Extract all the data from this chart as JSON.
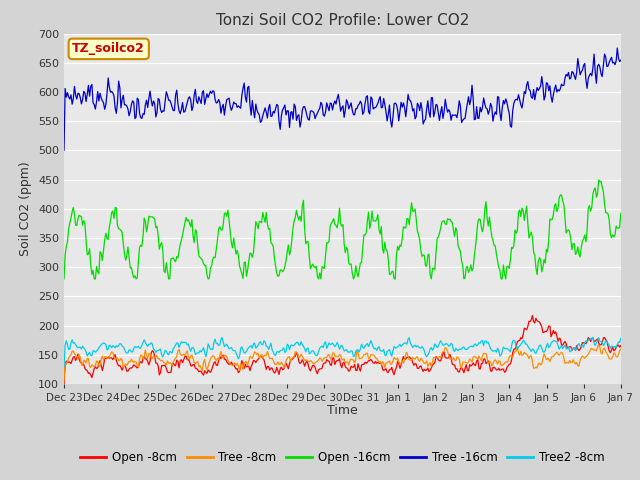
{
  "title": "Tonzi Soil CO2 Profile: Lower CO2",
  "ylabel": "Soil CO2 (ppm)",
  "xlabel": "Time",
  "watermark": "TZ_soilco2",
  "ylim": [
    100,
    700
  ],
  "yticks": [
    100,
    150,
    200,
    250,
    300,
    350,
    400,
    450,
    500,
    550,
    600,
    650,
    700
  ],
  "x_labels": [
    "Dec 23",
    "Dec 24",
    "Dec 25",
    "Dec 26",
    "Dec 27",
    "Dec 28",
    "Dec 29",
    "Dec 30",
    "Dec 31",
    "Jan 1",
    "Jan 2",
    "Jan 3",
    "Jan 4",
    "Jan 5",
    "Jan 6",
    "Jan 7"
  ],
  "series": {
    "open_8cm": {
      "label": "Open -8cm",
      "color": "#ff0000"
    },
    "tree_8cm": {
      "label": "Tree -8cm",
      "color": "#ff8c00"
    },
    "open_16cm": {
      "label": "Open -16cm",
      "color": "#00dd00"
    },
    "tree_16cm": {
      "label": "Tree -16cm",
      "color": "#0000cc"
    },
    "tree2_8cm": {
      "label": "Tree2 -8cm",
      "color": "#00ccee"
    }
  },
  "background_color": "#d4d4d4",
  "plot_bg": "#e8e8e8",
  "linewidth": 0.9,
  "n_points": 480,
  "seed": 7
}
